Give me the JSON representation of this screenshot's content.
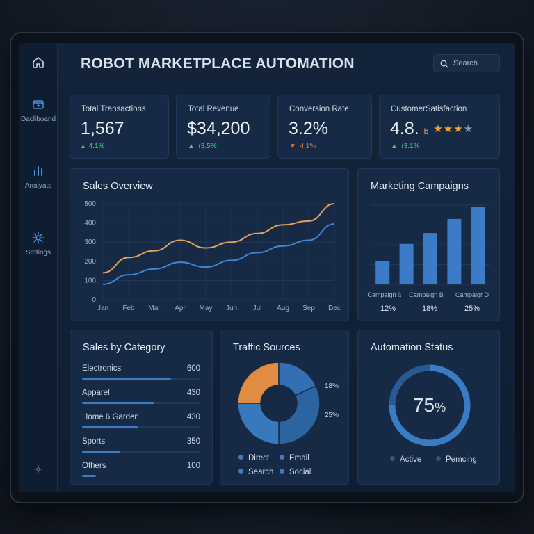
{
  "title": "ROBOT MARKETPLACE AUTOMATION",
  "search": {
    "placeholder": "Search"
  },
  "sidebar": {
    "items": [
      {
        "label": "",
        "icon": "home-icon"
      },
      {
        "label": "Dacliboand",
        "icon": "dashboard-icon"
      },
      {
        "label": "Analyats",
        "icon": "bar-chart-icon"
      },
      {
        "label": "Settings",
        "icon": "gear-icon"
      },
      {
        "label": "",
        "icon": "settings-small-icon"
      }
    ]
  },
  "stats": [
    {
      "label": "Total Transactions",
      "value": "1,567",
      "change": "4.1%",
      "trend": "up"
    },
    {
      "label": "Total Revenue",
      "value": "$34,200",
      "change": "(3.5%",
      "trend": "up"
    },
    {
      "label": "Conversion Rate",
      "value": "3.2%",
      "change": "4.1%",
      "trend": "down"
    },
    {
      "label": "CustomerSatisfaction",
      "value": "4.8.",
      "suffix": "b",
      "change": "(3.1%",
      "trend": "up",
      "stars": 3.5
    }
  ],
  "sales_overview": {
    "title": "Sales Overview",
    "months": [
      "Jan",
      "Feb",
      "Mar",
      "Apr",
      "May",
      "Jun",
      "Jul",
      "Aug",
      "Sep",
      "Dec"
    ],
    "y_ticks": [
      "500",
      "400",
      "300",
      "200",
      "100",
      "0"
    ]
  },
  "marketing": {
    "title": "Marketing Campaigns",
    "labels": [
      "Campaign ß",
      "Campaign B",
      "Campaigr D"
    ],
    "percents": [
      "12%",
      "18%",
      "25%"
    ]
  },
  "categories": {
    "title": "Sales by Category",
    "items": [
      {
        "label": "Electronics",
        "value": "600"
      },
      {
        "label": "Apparel",
        "value": "430"
      },
      {
        "label": "Home 6 Garden",
        "value": "430"
      },
      {
        "label": "Sports",
        "value": "350"
      },
      {
        "label": "Others",
        "value": "100"
      }
    ]
  },
  "traffic": {
    "title": "Traffic Sources",
    "pct_a": "18%",
    "pct_b": "25%",
    "legend": [
      "Direct",
      "Email",
      "Search",
      "Social"
    ]
  },
  "automation": {
    "title": "Automation Status",
    "value": "75",
    "unit": "%",
    "progress": 0.75,
    "legend": [
      "Active",
      "Pemcing"
    ]
  },
  "chart_data": [
    {
      "type": "line",
      "title": "Sales Overview",
      "categories": [
        "Jan",
        "Feb",
        "Mar",
        "Apr",
        "May",
        "Jun",
        "Jul",
        "Aug",
        "Sep",
        "Dec"
      ],
      "ylim": [
        0,
        500
      ],
      "grid": true,
      "series": [
        {
          "color": "#e8a25a",
          "values": [
            140,
            220,
            255,
            310,
            270,
            300,
            345,
            390,
            410,
            500
          ]
        },
        {
          "color": "#3f86d4",
          "values": [
            80,
            130,
            160,
            195,
            170,
            205,
            245,
            280,
            310,
            395
          ]
        }
      ]
    },
    {
      "type": "bar",
      "title": "Marketing Campaigns",
      "values": [
        30,
        52,
        66,
        84,
        100
      ],
      "grid": true
    },
    {
      "type": "pie",
      "title": "Traffic Sources",
      "categories": [
        "Direct",
        "Email",
        "Search",
        "Social"
      ],
      "values": [
        25,
        18,
        32,
        25
      ]
    }
  ]
}
